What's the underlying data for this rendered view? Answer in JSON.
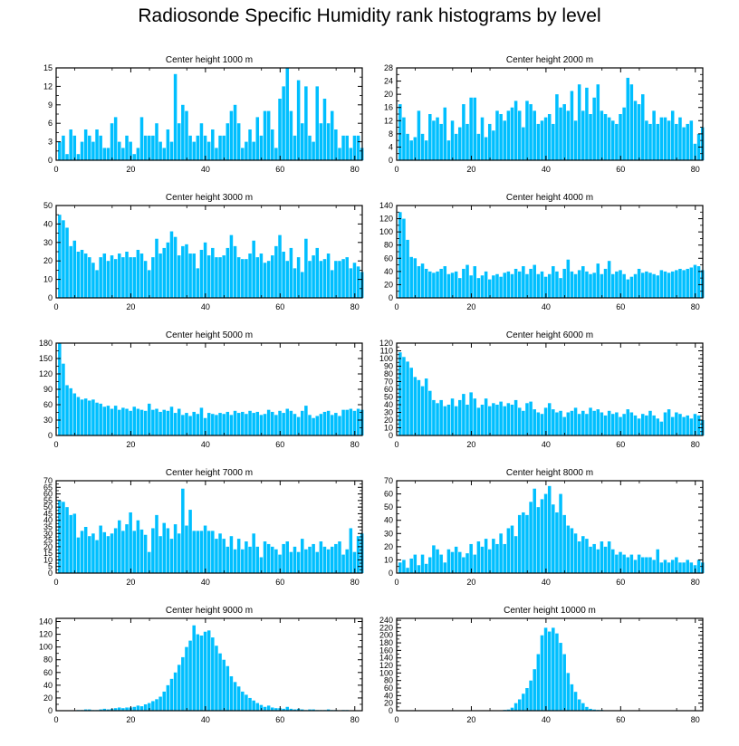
{
  "title": "Radiosonde Specific Humidity rank histograms by level",
  "colors": {
    "bar": "#00bfff",
    "axis": "#000000"
  },
  "chart_data": [
    {
      "type": "bar",
      "title": "Center height 1000 m",
      "xlabel": "",
      "ylabel": "",
      "xlim": [
        0,
        82
      ],
      "ylim": [
        0,
        15
      ],
      "xticks": [
        0,
        20,
        40,
        60,
        80
      ],
      "yticks": [
        0,
        3,
        6,
        9,
        12,
        15
      ],
      "values": [
        3,
        4,
        1,
        5,
        4,
        1,
        3,
        5,
        4,
        3,
        5,
        4,
        2,
        2,
        6,
        7,
        3,
        2,
        4,
        3,
        1,
        2,
        7,
        4,
        4,
        4,
        6,
        3,
        2,
        5,
        3,
        14,
        6,
        9,
        8,
        4,
        3,
        4,
        6,
        4,
        3,
        5,
        2,
        4,
        4,
        6,
        8,
        9,
        6,
        2,
        3,
        5,
        3,
        7,
        4,
        8,
        8,
        5,
        2,
        10,
        12,
        15,
        8,
        4,
        13,
        6,
        12,
        4,
        3,
        12,
        6,
        10,
        6,
        8,
        5,
        2,
        4,
        4,
        2,
        4,
        4,
        2
      ]
    },
    {
      "type": "bar",
      "title": "Center height 2000 m",
      "xlabel": "",
      "ylabel": "",
      "xlim": [
        0,
        82
      ],
      "ylim": [
        0,
        28
      ],
      "xticks": [
        0,
        20,
        40,
        60,
        80
      ],
      "yticks": [
        0,
        4,
        8,
        12,
        16,
        20,
        24,
        28
      ],
      "values": [
        17,
        13,
        8,
        6,
        7,
        15,
        8,
        6,
        14,
        12,
        13,
        11,
        16,
        6,
        12,
        8,
        10,
        17,
        11,
        19,
        19,
        8,
        13,
        7,
        11,
        9,
        15,
        14,
        12,
        15,
        16,
        18,
        15,
        10,
        18,
        17,
        15,
        11,
        12,
        13,
        14,
        11,
        20,
        16,
        17,
        15,
        21,
        12,
        23,
        15,
        22,
        14,
        19,
        23,
        15,
        14,
        13,
        12,
        11,
        14,
        16,
        25,
        23,
        18,
        17,
        20,
        12,
        11,
        15,
        11,
        13,
        13,
        12,
        15,
        11,
        13,
        10,
        11,
        12,
        5,
        8,
        10
      ]
    },
    {
      "type": "bar",
      "title": "Center height 3000 m",
      "xlabel": "",
      "ylabel": "",
      "xlim": [
        0,
        82
      ],
      "ylim": [
        0,
        50
      ],
      "xticks": [
        0,
        20,
        40,
        60,
        80
      ],
      "yticks": [
        0,
        10,
        20,
        30,
        40,
        50
      ],
      "values": [
        45,
        42,
        38,
        28,
        31,
        25,
        26,
        24,
        22,
        19,
        15,
        22,
        24,
        20,
        23,
        21,
        24,
        22,
        25,
        22,
        22,
        26,
        24,
        20,
        15,
        22,
        32,
        24,
        27,
        30,
        36,
        33,
        23,
        28,
        29,
        24,
        24,
        16,
        26,
        30,
        23,
        27,
        22,
        22,
        23,
        27,
        34,
        28,
        22,
        21,
        21,
        24,
        31,
        22,
        24,
        19,
        20,
        23,
        28,
        34,
        25,
        20,
        27,
        16,
        22,
        14,
        32,
        20,
        23,
        27,
        20,
        21,
        24,
        15,
        20,
        20,
        21,
        22,
        16,
        19,
        17,
        14
      ]
    },
    {
      "type": "bar",
      "title": "Center height 4000 m",
      "xlabel": "",
      "ylabel": "",
      "xlim": [
        0,
        82
      ],
      "ylim": [
        0,
        140
      ],
      "xticks": [
        0,
        20,
        40,
        60,
        80
      ],
      "yticks": [
        0,
        20,
        40,
        60,
        80,
        100,
        120,
        140
      ],
      "values": [
        130,
        120,
        88,
        62,
        60,
        48,
        52,
        44,
        40,
        38,
        40,
        44,
        48,
        36,
        38,
        40,
        30,
        44,
        50,
        34,
        48,
        30,
        34,
        40,
        28,
        34,
        36,
        32,
        38,
        40,
        36,
        44,
        40,
        48,
        36,
        44,
        50,
        36,
        40,
        32,
        36,
        48,
        40,
        30,
        44,
        58,
        40,
        36,
        42,
        48,
        40,
        36,
        38,
        52,
        36,
        44,
        56,
        36,
        40,
        42,
        36,
        28,
        32,
        36,
        44,
        38,
        40,
        38,
        36,
        34,
        42,
        40,
        38,
        40,
        42,
        44,
        42,
        44,
        46,
        50,
        48,
        42
      ]
    },
    {
      "type": "bar",
      "title": "Center height 5000 m",
      "xlabel": "",
      "ylabel": "",
      "xlim": [
        0,
        82
      ],
      "ylim": [
        0,
        180
      ],
      "xticks": [
        0,
        20,
        40,
        60,
        80
      ],
      "yticks": [
        0,
        30,
        60,
        90,
        120,
        150,
        180
      ],
      "values": [
        180,
        140,
        98,
        92,
        82,
        75,
        70,
        72,
        68,
        70,
        64,
        62,
        56,
        58,
        52,
        58,
        50,
        54,
        52,
        48,
        56,
        52,
        50,
        48,
        62,
        50,
        52,
        46,
        50,
        48,
        56,
        44,
        52,
        40,
        44,
        38,
        46,
        42,
        54,
        34,
        44,
        42,
        40,
        44,
        42,
        46,
        40,
        48,
        44,
        46,
        42,
        48,
        44,
        46,
        40,
        42,
        50,
        46,
        40,
        48,
        44,
        52,
        48,
        42,
        36,
        48,
        58,
        40,
        34,
        38,
        42,
        46,
        48,
        40,
        44,
        38,
        50,
        50,
        52,
        48,
        52,
        50
      ]
    },
    {
      "type": "bar",
      "title": "Center height 6000 m",
      "xlabel": "",
      "ylabel": "",
      "xlim": [
        0,
        82
      ],
      "ylim": [
        0,
        120
      ],
      "xticks": [
        0,
        20,
        40,
        60,
        80
      ],
      "yticks": [
        0,
        10,
        20,
        30,
        40,
        50,
        60,
        70,
        80,
        90,
        100,
        110,
        120
      ],
      "values": [
        108,
        102,
        96,
        88,
        76,
        72,
        64,
        74,
        58,
        46,
        42,
        46,
        38,
        40,
        48,
        38,
        46,
        54,
        40,
        56,
        48,
        36,
        40,
        48,
        38,
        42,
        40,
        44,
        38,
        42,
        40,
        46,
        36,
        32,
        42,
        44,
        34,
        30,
        28,
        36,
        42,
        34,
        30,
        32,
        24,
        30,
        32,
        36,
        28,
        32,
        28,
        36,
        32,
        34,
        30,
        26,
        32,
        28,
        30,
        24,
        28,
        34,
        30,
        26,
        22,
        28,
        26,
        32,
        26,
        22,
        18,
        30,
        34,
        24,
        30,
        28,
        24,
        26,
        22,
        28,
        26,
        20
      ]
    },
    {
      "type": "bar",
      "title": "Center height 7000 m",
      "xlabel": "",
      "ylabel": "",
      "xlim": [
        0,
        82
      ],
      "ylim": [
        0,
        70
      ],
      "xticks": [
        0,
        20,
        40,
        60,
        80
      ],
      "yticks": [
        0,
        5,
        10,
        15,
        20,
        25,
        30,
        35,
        40,
        45,
        50,
        55,
        60,
        65,
        70
      ],
      "values": [
        55,
        54,
        50,
        44,
        45,
        27,
        32,
        35,
        28,
        30,
        25,
        36,
        31,
        28,
        30,
        34,
        40,
        32,
        37,
        46,
        32,
        40,
        33,
        29,
        16,
        34,
        44,
        28,
        38,
        34,
        26,
        37,
        30,
        64,
        36,
        48,
        32,
        32,
        32,
        36,
        32,
        32,
        26,
        30,
        26,
        20,
        28,
        18,
        26,
        18,
        24,
        20,
        30,
        20,
        12,
        24,
        22,
        20,
        18,
        14,
        22,
        24,
        16,
        20,
        16,
        26,
        18,
        20,
        22,
        16,
        24,
        20,
        18,
        20,
        22,
        24,
        14,
        18,
        34,
        16,
        28,
        30
      ]
    },
    {
      "type": "bar",
      "title": "Center height 8000 m",
      "xlabel": "",
      "ylabel": "",
      "xlim": [
        0,
        82
      ],
      "ylim": [
        0,
        70
      ],
      "xticks": [
        0,
        20,
        40,
        60,
        80
      ],
      "yticks": [
        0,
        10,
        20,
        30,
        40,
        50,
        60,
        70
      ],
      "values": [
        8,
        10,
        4,
        11,
        14,
        6,
        14,
        7,
        12,
        21,
        18,
        14,
        8,
        18,
        16,
        20,
        16,
        12,
        15,
        22,
        14,
        24,
        20,
        26,
        18,
        26,
        22,
        30,
        22,
        34,
        36,
        28,
        44,
        46,
        44,
        54,
        64,
        50,
        56,
        60,
        66,
        52,
        46,
        60,
        44,
        36,
        34,
        30,
        24,
        28,
        26,
        20,
        22,
        18,
        24,
        20,
        24,
        18,
        14,
        16,
        14,
        12,
        14,
        10,
        14,
        12,
        12,
        12,
        10,
        18,
        8,
        10,
        8,
        10,
        12,
        8,
        8,
        10,
        8,
        6,
        10,
        8
      ]
    },
    {
      "type": "bar",
      "title": "Center height 9000 m",
      "xlabel": "",
      "ylabel": "",
      "xlim": [
        0,
        82
      ],
      "ylim": [
        0,
        145
      ],
      "xticks": [
        0,
        20,
        40,
        60,
        80
      ],
      "yticks": [
        0,
        20,
        40,
        60,
        80,
        100,
        120,
        140
      ],
      "values": [
        0,
        0,
        0,
        0,
        0,
        1,
        1,
        2,
        2,
        1,
        1,
        2,
        3,
        2,
        3,
        4,
        5,
        4,
        5,
        5,
        6,
        8,
        7,
        10,
        12,
        15,
        18,
        22,
        30,
        40,
        50,
        60,
        72,
        84,
        100,
        110,
        134,
        120,
        118,
        124,
        126,
        115,
        102,
        90,
        80,
        70,
        54,
        45,
        38,
        30,
        25,
        20,
        16,
        12,
        9,
        6,
        8,
        5,
        4,
        4,
        3,
        6,
        3,
        2,
        3,
        2,
        1,
        2,
        2,
        1,
        1,
        1,
        2,
        1,
        1,
        0,
        1,
        1,
        0,
        0,
        0,
        0
      ]
    },
    {
      "type": "bar",
      "title": "Center height 10000 m",
      "xlabel": "",
      "ylabel": "",
      "xlim": [
        0,
        82
      ],
      "ylim": [
        0,
        245
      ],
      "xticks": [
        0,
        20,
        40,
        60,
        80
      ],
      "yticks": [
        0,
        20,
        40,
        60,
        80,
        100,
        120,
        140,
        160,
        180,
        200,
        220,
        240
      ],
      "values": [
        0,
        0,
        0,
        0,
        0,
        0,
        0,
        0,
        0,
        0,
        0,
        0,
        0,
        0,
        0,
        0,
        0,
        0,
        0,
        0,
        0,
        0,
        0,
        0,
        0,
        0,
        1,
        1,
        2,
        3,
        8,
        20,
        30,
        45,
        60,
        80,
        110,
        150,
        200,
        220,
        210,
        220,
        205,
        180,
        150,
        100,
        70,
        50,
        30,
        20,
        10,
        5,
        3,
        2,
        2,
        1,
        1,
        1,
        0,
        0,
        0,
        0,
        0,
        0,
        0,
        0,
        0,
        0,
        0,
        0,
        0,
        0,
        0,
        0,
        0,
        0,
        0,
        0,
        0,
        0,
        0,
        0
      ]
    }
  ]
}
